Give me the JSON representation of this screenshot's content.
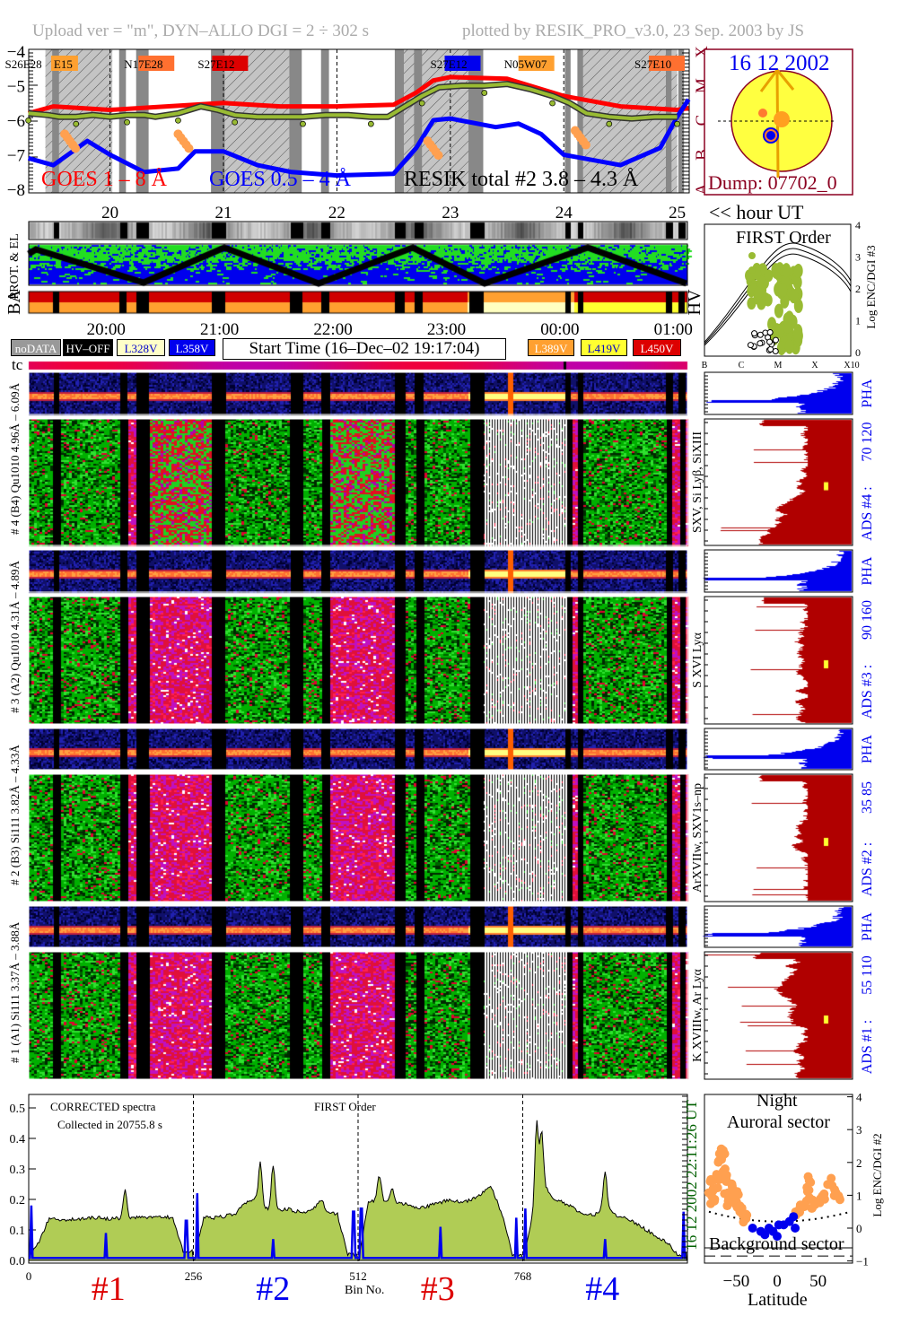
{
  "header": {
    "upload_info": "Upload ver = \"m\", DYN–ALLO DGI =   2 ÷ 302 s",
    "plotted_by": "plotted by RESIK_PRO_v3.0, 23 Sep. 2003 by JS"
  },
  "colors": {
    "goes_long": "#ff0000",
    "goes_short": "#0000ff",
    "resik": "#99bb33",
    "spectrum_fill": "#b0cc55",
    "hist_red": "#b00000",
    "hist_blue": "#0000ee",
    "dark_red": "#8b0020",
    "orange": "#ffa050",
    "sun": "#ffff40"
  },
  "lightcurve": {
    "y_ticks": [
      "−4",
      "−5",
      "−6",
      "−7",
      "−8"
    ],
    "class_letters": [
      "X",
      "M",
      "C",
      "B",
      "A"
    ],
    "legend": {
      "goes_long": "GOES 1 – 8 Å",
      "goes_short": "GOES 0.5 – 4 Å",
      "resik": "RESIK total #2  3.8 – 4.3 Å"
    },
    "active_regions": [
      {
        "text": "S26E28",
        "box": "",
        "hour": 19.2
      },
      {
        "text": "E15",
        "box": "#ffa030",
        "hour": 19.48
      },
      {
        "text": "N17E28",
        "box": "#ff7030",
        "hour": 20.25
      },
      {
        "text": "S27E12",
        "box": "#dd0000",
        "hour": 20.9
      },
      {
        "text": "S27E12",
        "box": "#0000ee",
        "hour": 22.95
      },
      {
        "text": "N05W07",
        "box": "#ffa030",
        "hour": 23.6
      },
      {
        "text": "S27E10",
        "box": "#ff7030",
        "hour": 24.75
      }
    ],
    "hour_labels": [
      "20",
      "21",
      "22",
      "23",
      "24",
      "25"
    ],
    "hour_axis_label": "<< hour UT"
  },
  "sun": {
    "date": "16 12 2002",
    "dump": "Dump: 07702_0"
  },
  "orbit": {
    "prot_label": "PROT. & EL",
    "ba_label": "BA",
    "hv_label": "HV",
    "time_labels": [
      "20:00",
      "21:00",
      "22:00",
      "23:00",
      "00:00",
      "01:00"
    ]
  },
  "legend_boxes": [
    {
      "label": "noDATA",
      "bg": "#999999",
      "fg": "#ffffff"
    },
    {
      "label": "HV–OFF",
      "bg": "#000000",
      "fg": "#ffffff"
    },
    {
      "label": "L328V",
      "bg": "#ffffc8",
      "fg": "#0000cc"
    },
    {
      "label": "L358V",
      "bg": "#0000ee",
      "fg": "#ffffff"
    },
    {
      "label": "L389V",
      "bg": "#ffa030",
      "fg": "#ffffff"
    },
    {
      "label": "L419V",
      "bg": "#ffff30",
      "fg": "#0000cc"
    },
    {
      "label": "L450V",
      "bg": "#dd0000",
      "fg": "#ffffff"
    }
  ],
  "start_time": "Start Time (16–Dec–02 19:17:04)",
  "tc_label": "tc",
  "first_order_panel": {
    "title": "FIRST Order",
    "ylabel": "Log ENC/DGI #3",
    "y_ticks": [
      "0",
      "1",
      "2",
      "3",
      "4"
    ],
    "x_ticks": [
      "B",
      "C",
      "M",
      "X",
      "X10"
    ]
  },
  "channels": [
    {
      "left_label": "# 4 (B4) Qu1010 4.96Å – 6.09Å",
      "lines": "SXV, Si Lyβ, SiXIII",
      "ads": "ADS #4 :",
      "range": "70 120",
      "pha": "PHA"
    },
    {
      "left_label": "# 3 (A2) Qu1010 4.31Å – 4.89Å",
      "lines": "S XVI Lyα",
      "ads": "ADS #3 :",
      "range": "90 160",
      "pha": "PHA"
    },
    {
      "left_label": "# 2 (B3) Si111 3.82Å – 4.33Å",
      "lines": "ArXVIIw, SXV1s–np",
      "ads": "ADS #2 :",
      "range": "35 85",
      "pha": "PHA"
    },
    {
      "left_label": "# 1 (A1) Si111 3.37Å – 3.88Å",
      "lines": "K XVIIIw, Ar Lyα",
      "ads": "ADS #1 :",
      "range": "55 110",
      "pha": "PHA"
    }
  ],
  "spectrum": {
    "title": "CORRECTED spectra",
    "subtitle": "Collected in 20755.8 s",
    "order_label": "FIRST Order",
    "y_ticks": [
      "0.0",
      "0.1",
      "0.2",
      "0.3",
      "0.4",
      "0.5"
    ],
    "x_ticks": [
      "0",
      "256",
      "512",
      "768"
    ],
    "xlabel": "Bin No.",
    "crystals": [
      {
        "label": "#1",
        "color": "#dd0000"
      },
      {
        "label": "#2",
        "color": "#0000ee"
      },
      {
        "label": "#3",
        "color": "#dd0000"
      },
      {
        "label": "#4",
        "color": "#0000ee"
      }
    ],
    "timestamp": "16 12 2002   22:11:26 UT"
  },
  "aurora": {
    "title1": "Night",
    "title2": "Auroral sector",
    "background": "Background sector",
    "x_ticks": [
      "−50",
      "0",
      "50"
    ],
    "xlabel": "Latitude",
    "y_ticks": [
      "4",
      "3",
      "2",
      "1",
      "0",
      "−1"
    ],
    "ylabel": "Log ENC/DGI #2"
  },
  "chart_data": [
    {
      "type": "line",
      "xlabel": "hour UT",
      "ylabel": "",
      "xlim": [
        19.28,
        25.1
      ],
      "ylim": [
        -8,
        -4
      ],
      "data_gaps_hours": [
        [
          19.49,
          19.55
        ],
        [
          20.08,
          20.14
        ],
        [
          20.23,
          20.34
        ],
        [
          20.89,
          21.01
        ],
        [
          21.58,
          21.69
        ],
        [
          21.86,
          21.93
        ],
        [
          22.51,
          22.59
        ],
        [
          22.68,
          22.75
        ],
        [
          23.16,
          23.29
        ],
        [
          24.01,
          24.06
        ],
        [
          24.12,
          24.17
        ],
        [
          24.9,
          24.95
        ],
        [
          25.01,
          25.06
        ]
      ],
      "night_hours": [
        [
          19.43,
          20.02
        ],
        [
          20.99,
          21.58
        ],
        [
          22.59,
          23.18
        ],
        [
          24.13,
          25.0
        ]
      ],
      "series": [
        {
          "name": "GOES 1 – 8 Å",
          "x": [
            19.28,
            19.5,
            20.0,
            20.5,
            21.0,
            21.5,
            22.0,
            22.5,
            22.7,
            22.85,
            23.0,
            23.5,
            24.0,
            24.5,
            25.0,
            25.1
          ],
          "y": [
            -5.8,
            -5.6,
            -5.7,
            -5.6,
            -5.5,
            -5.6,
            -5.6,
            -5.55,
            -5.2,
            -4.85,
            -4.75,
            -4.8,
            -5.3,
            -5.6,
            -5.7,
            -5.65
          ]
        },
        {
          "name": "GOES 0.5 – 4 Å",
          "x": [
            19.28,
            19.5,
            19.8,
            20.0,
            20.3,
            20.6,
            20.75,
            21.0,
            21.3,
            21.6,
            22.0,
            22.5,
            22.7,
            22.85,
            23.0,
            23.4,
            23.6,
            23.8,
            24.0,
            24.5,
            24.85,
            25.0,
            25.1
          ],
          "y": [
            -7.1,
            -7.3,
            -6.6,
            -7.0,
            -7.5,
            -7.4,
            -6.9,
            -6.9,
            -7.3,
            -7.5,
            -7.6,
            -7.55,
            -6.8,
            -6.0,
            -5.95,
            -6.2,
            -6.1,
            -6.4,
            -7.0,
            -7.3,
            -6.8,
            -5.9,
            -5.4
          ]
        },
        {
          "name": "RESIK total #2  3.8 – 4.3 Å",
          "x": [
            19.28,
            19.45,
            19.55,
            19.7,
            19.85,
            20.0,
            20.15,
            20.3,
            20.4,
            20.6,
            20.8,
            20.95,
            21.1,
            21.3,
            21.5,
            21.7,
            21.9,
            22.1,
            22.3,
            22.45,
            22.6,
            22.75,
            22.9,
            23.1,
            23.3,
            23.5,
            23.7,
            23.9,
            24.05,
            24.2,
            24.4,
            24.6,
            24.8,
            25.0
          ],
          "y": [
            -5.8,
            -5.85,
            -5.9,
            -5.9,
            -5.85,
            -5.9,
            -5.85,
            -5.85,
            -5.9,
            -5.8,
            -5.6,
            -5.7,
            -5.85,
            -5.9,
            -5.9,
            -5.9,
            -5.85,
            -5.85,
            -5.9,
            -5.9,
            -5.6,
            -5.3,
            -5.05,
            -5.0,
            -5.0,
            -4.95,
            -5.1,
            -5.3,
            -5.5,
            -5.8,
            -5.9,
            -5.95,
            -5.9,
            -5.9
          ]
        }
      ]
    },
    {
      "type": "area",
      "title": "CORRECTED spectra",
      "xlabel": "Bin No.",
      "xlim": [
        0,
        1024
      ],
      "ylim": [
        0,
        0.55
      ],
      "x_step": 16,
      "series": [
        {
          "values": [
            0.01,
            0.06,
            0.14,
            0.13,
            0.135,
            0.135,
            0.14,
            0.14,
            0.135,
            0.14,
            0.14,
            0.14,
            0.14,
            0.145,
            0.14,
            0.03,
            0.0,
            0.14,
            0.14,
            0.145,
            0.15,
            0.19,
            0.2,
            0.17,
            0.16,
            0.17,
            0.16,
            0.16,
            0.18,
            0.16,
            0.15,
            0.02,
            0.0,
            0.19,
            0.2,
            0.19,
            0.19,
            0.18,
            0.17,
            0.18,
            0.19,
            0.2,
            0.19,
            0.2,
            0.22,
            0.24,
            0.15,
            0.02,
            0.0,
            0.15,
            0.25,
            0.2,
            0.19,
            0.17,
            0.15,
            0.15,
            0.17,
            0.15,
            0.14,
            0.12,
            0.1,
            0.08,
            0.06,
            0.02
          ],
          "peaks": [
            [
              150,
              0.25
            ],
            [
              360,
              0.34
            ],
            [
              380,
              0.33
            ],
            [
              455,
              0.22
            ],
            [
              545,
              0.3
            ],
            [
              565,
              0.26
            ],
            [
              688,
              0.21
            ],
            [
              790,
              0.48
            ],
            [
              797,
              0.45
            ],
            [
              896,
              0.31
            ]
          ]
        },
        {
          "baseline": 0.008,
          "spikes": [
            [
              4,
              0.18
            ],
            [
              120,
              0.09
            ],
            [
              245,
              0.13
            ],
            [
              262,
              0.22
            ],
            [
              380,
              0.07
            ],
            [
              505,
              0.16
            ],
            [
              517,
              0.17
            ],
            [
              640,
              0.11
            ],
            [
              758,
              0.14
            ],
            [
              772,
              0.17
            ],
            [
              896,
              0.07
            ],
            [
              1018,
              0.16
            ]
          ]
        }
      ]
    },
    {
      "type": "scatter",
      "xlabel": "Latitude",
      "ylabel": "Log ENC/DGI #2",
      "xlim": [
        -90,
        90
      ],
      "ylim": [
        -1,
        4
      ],
      "series": [
        {
          "name": "Auroral sector",
          "points": [
            [
              -82,
              1.0
            ],
            [
              -80,
              1.4
            ],
            [
              -78,
              0.8
            ],
            [
              -75,
              1.2
            ],
            [
              -72,
              1.6
            ],
            [
              -70,
              2.1
            ],
            [
              -68,
              2.3
            ],
            [
              -65,
              1.8
            ],
            [
              -64,
              2.2
            ],
            [
              -62,
              1.0
            ],
            [
              -60,
              1.5
            ],
            [
              -58,
              0.8
            ],
            [
              -55,
              1.3
            ],
            [
              -52,
              1.1
            ],
            [
              -50,
              0.9
            ],
            [
              -48,
              0.7
            ],
            [
              -45,
              0.6
            ],
            [
              -42,
              0.5
            ],
            [
              -40,
              0.4
            ],
            [
              -38,
              0.3
            ],
            [
              25,
              0.5
            ],
            [
              30,
              0.6
            ],
            [
              35,
              0.7
            ],
            [
              38,
              1.2
            ],
            [
              40,
              1.5
            ],
            [
              42,
              0.9
            ],
            [
              45,
              0.6
            ],
            [
              55,
              0.8
            ],
            [
              58,
              1.0
            ],
            [
              65,
              1.4
            ],
            [
              70,
              1.1
            ],
            [
              75,
              0.9
            ]
          ]
        },
        {
          "name": "Background sector",
          "points": [
            [
              -30,
              0.0
            ],
            [
              -20,
              -0.1
            ],
            [
              -15,
              -0.2
            ],
            [
              -10,
              0.0
            ],
            [
              -5,
              -0.1
            ],
            [
              0,
              -0.25
            ],
            [
              2,
              0.1
            ],
            [
              8,
              0.1
            ],
            [
              15,
              0.2
            ],
            [
              20,
              0.35
            ],
            [
              22,
              0.0
            ]
          ]
        }
      ],
      "threshold": "dotted"
    }
  ]
}
